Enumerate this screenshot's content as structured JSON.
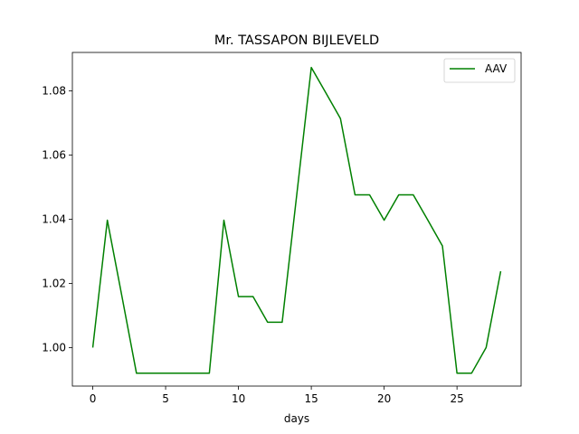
{
  "chart_data": {
    "type": "line",
    "title": "Mr. TASSAPON BIJLEVELD",
    "xlabel": "days",
    "ylabel": "",
    "xlim": [
      -1.4,
      29.4
    ],
    "ylim": [
      0.988,
      1.092
    ],
    "xticks": [
      0,
      5,
      10,
      15,
      20,
      25
    ],
    "xtick_labels": [
      "0",
      "5",
      "10",
      "15",
      "20",
      "25"
    ],
    "yticks": [
      1.0,
      1.02,
      1.04,
      1.06,
      1.08
    ],
    "ytick_labels": [
      "1.00",
      "1.02",
      "1.04",
      "1.06",
      "1.08"
    ],
    "grid": false,
    "legend_position": "top-right",
    "series": [
      {
        "name": "AAV",
        "color": "#008000",
        "x": [
          0,
          1,
          2,
          3,
          4,
          5,
          6,
          7,
          8,
          9,
          10,
          11,
          12,
          13,
          14,
          15,
          16,
          17,
          18,
          19,
          20,
          21,
          22,
          23,
          24,
          25,
          26,
          27,
          28
        ],
        "y": [
          1.0,
          1.0397,
          1.016,
          0.992,
          0.992,
          0.992,
          0.992,
          0.992,
          0.992,
          1.0397,
          1.0159,
          1.0159,
          1.0079,
          1.0079,
          1.0476,
          1.0873,
          1.0794,
          1.0714,
          1.0476,
          1.0476,
          1.0397,
          1.0476,
          1.0476,
          1.0397,
          1.0317,
          0.992,
          0.992,
          1.0,
          1.0238
        ]
      }
    ]
  }
}
